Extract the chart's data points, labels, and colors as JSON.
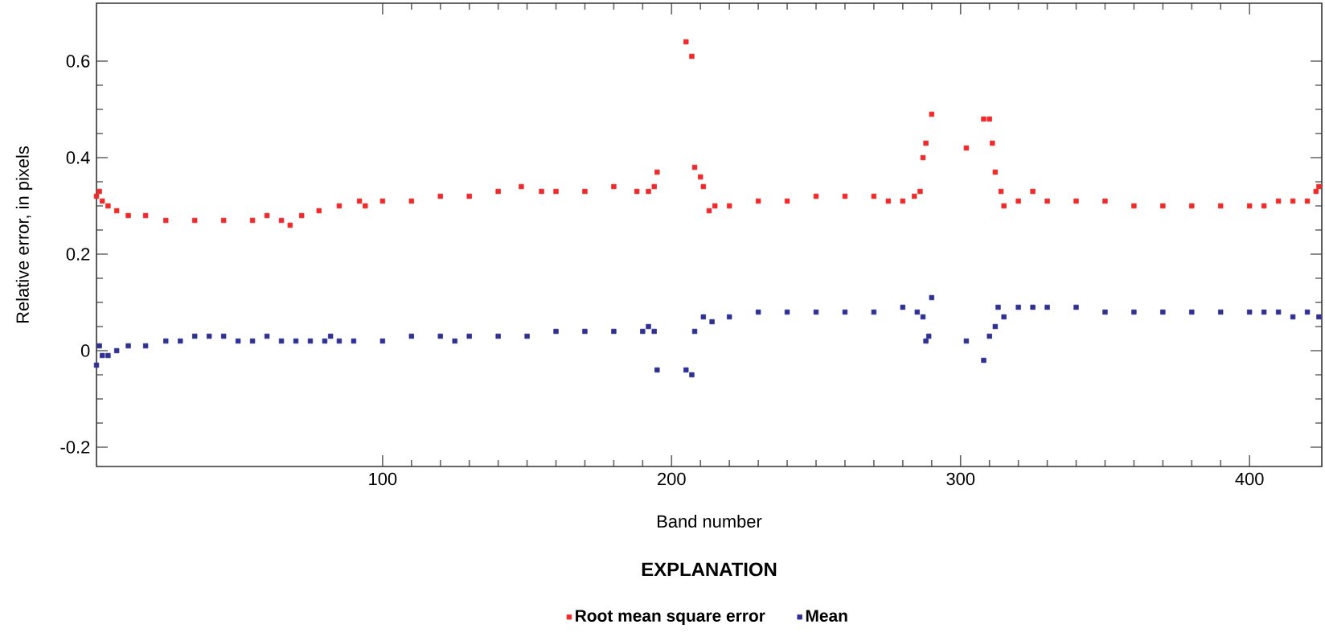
{
  "chart_data": {
    "type": "scatter",
    "xlabel": "Band number",
    "ylabel": "Relative error, in pixels",
    "legend_title": "EXPLANATION",
    "xlim": [
      1,
      425
    ],
    "ylim": [
      -0.24,
      0.72
    ],
    "xticks": [
      100,
      200,
      300,
      400
    ],
    "yticks": [
      -0.2,
      0,
      0.2,
      0.4,
      0.6
    ],
    "legend": "bottom",
    "marker": "square",
    "series": [
      {
        "name": "Root mean square error",
        "color": "#ee2a2a",
        "x": [
          1,
          2,
          3,
          5,
          8,
          12,
          18,
          25,
          35,
          45,
          55,
          60,
          65,
          68,
          72,
          78,
          85,
          92,
          94,
          100,
          110,
          120,
          130,
          140,
          148,
          155,
          160,
          170,
          180,
          188,
          192,
          194,
          195,
          205,
          207,
          208,
          210,
          211,
          213,
          215,
          220,
          230,
          240,
          250,
          260,
          270,
          275,
          280,
          284,
          286,
          287,
          288,
          290,
          302,
          308,
          310,
          311,
          312,
          314,
          315,
          320,
          325,
          330,
          340,
          350,
          360,
          370,
          380,
          390,
          400,
          405,
          410,
          415,
          420,
          423,
          424
        ],
        "values": [
          0.32,
          0.33,
          0.31,
          0.3,
          0.29,
          0.28,
          0.28,
          0.27,
          0.27,
          0.27,
          0.27,
          0.28,
          0.27,
          0.26,
          0.28,
          0.29,
          0.3,
          0.31,
          0.3,
          0.31,
          0.31,
          0.32,
          0.32,
          0.33,
          0.34,
          0.33,
          0.33,
          0.33,
          0.34,
          0.33,
          0.33,
          0.34,
          0.37,
          0.64,
          0.61,
          0.38,
          0.36,
          0.34,
          0.29,
          0.3,
          0.3,
          0.31,
          0.31,
          0.32,
          0.32,
          0.32,
          0.31,
          0.31,
          0.32,
          0.33,
          0.4,
          0.43,
          0.49,
          0.42,
          0.48,
          0.48,
          0.43,
          0.37,
          0.33,
          0.3,
          0.31,
          0.33,
          0.31,
          0.31,
          0.31,
          0.3,
          0.3,
          0.3,
          0.3,
          0.3,
          0.3,
          0.31,
          0.31,
          0.31,
          0.33,
          0.34
        ]
      },
      {
        "name": "Mean",
        "color": "#2e3192",
        "x": [
          1,
          2,
          3,
          5,
          8,
          12,
          18,
          25,
          30,
          35,
          40,
          45,
          50,
          55,
          60,
          65,
          70,
          75,
          80,
          82,
          85,
          90,
          100,
          110,
          120,
          125,
          130,
          140,
          150,
          160,
          170,
          180,
          190,
          192,
          194,
          195,
          205,
          207,
          208,
          211,
          214,
          220,
          230,
          240,
          250,
          260,
          270,
          280,
          285,
          287,
          288,
          289,
          290,
          302,
          308,
          310,
          312,
          313,
          315,
          320,
          325,
          330,
          340,
          350,
          360,
          370,
          380,
          390,
          400,
          405,
          410,
          415,
          420,
          424
        ],
        "values": [
          -0.03,
          0.01,
          -0.01,
          -0.01,
          0.0,
          0.01,
          0.01,
          0.02,
          0.02,
          0.03,
          0.03,
          0.03,
          0.02,
          0.02,
          0.03,
          0.02,
          0.02,
          0.02,
          0.02,
          0.03,
          0.02,
          0.02,
          0.02,
          0.03,
          0.03,
          0.02,
          0.03,
          0.03,
          0.03,
          0.04,
          0.04,
          0.04,
          0.04,
          0.05,
          0.04,
          -0.04,
          -0.04,
          -0.05,
          0.04,
          0.07,
          0.06,
          0.07,
          0.08,
          0.08,
          0.08,
          0.08,
          0.08,
          0.09,
          0.08,
          0.07,
          0.02,
          0.03,
          0.11,
          0.02,
          -0.02,
          0.03,
          0.05,
          0.09,
          0.07,
          0.09,
          0.09,
          0.09,
          0.09,
          0.08,
          0.08,
          0.08,
          0.08,
          0.08,
          0.08,
          0.08,
          0.08,
          0.07,
          0.08,
          0.07
        ]
      }
    ]
  }
}
